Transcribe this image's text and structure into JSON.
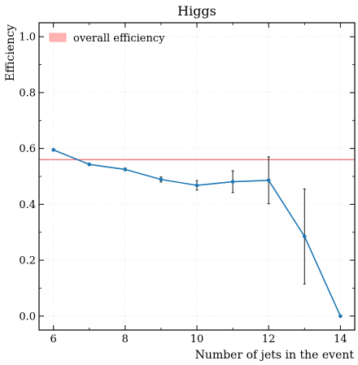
{
  "chart_data": {
    "type": "line",
    "title": "Higgs",
    "xlabel": "Number of jets in the event",
    "ylabel": "Efficiency",
    "xlim": [
      5.6,
      14.4
    ],
    "ylim": [
      -0.05,
      1.05
    ],
    "xticks": [
      6,
      8,
      10,
      12,
      14
    ],
    "xtick_labels": [
      "6",
      "8",
      "10",
      "12",
      "14"
    ],
    "yticks": [
      0.0,
      0.2,
      0.4,
      0.6,
      0.8,
      1.0
    ],
    "ytick_labels": [
      "0.0",
      "0.2",
      "0.4",
      "0.6",
      "0.8",
      "1.0"
    ],
    "grid": true,
    "legend": {
      "position": "top-left",
      "entries": [
        "overall efficiency"
      ]
    },
    "reference_line": {
      "label": "overall efficiency",
      "value": 0.56,
      "color": "#f08080"
    },
    "series": [
      {
        "x": [
          6,
          7,
          8,
          9,
          10,
          11,
          12,
          13,
          14
        ],
        "y": [
          0.595,
          0.543,
          0.525,
          0.489,
          0.468,
          0.481,
          0.486,
          0.285,
          0.0
        ],
        "yerr": [
          0.004,
          0.004,
          0.005,
          0.009,
          0.017,
          0.039,
          0.084,
          0.17,
          0.0
        ],
        "color": "#1f77b4"
      }
    ]
  }
}
